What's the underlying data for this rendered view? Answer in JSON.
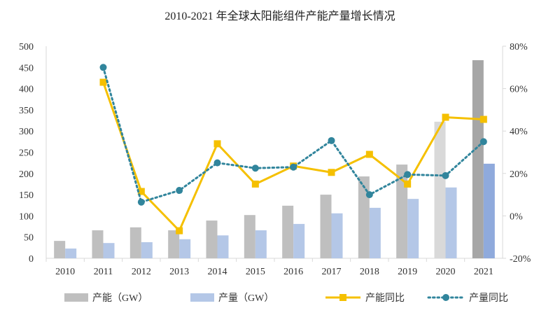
{
  "chart_data": {
    "type": "bar+line",
    "title": "2010-2021 年全球太阳能组件产能产量增长情况",
    "categories": [
      "2010",
      "2011",
      "2012",
      "2013",
      "2014",
      "2015",
      "2016",
      "2017",
      "2018",
      "2019",
      "2020",
      "2021"
    ],
    "left_axis": {
      "ylim": [
        0,
        500
      ],
      "ticks": [
        "0",
        "50",
        "100",
        "150",
        "200",
        "250",
        "300",
        "350",
        "400",
        "450",
        "500"
      ]
    },
    "right_axis": {
      "ylim": [
        -20,
        80
      ],
      "ticks": [
        "-20%",
        "0%",
        "20%",
        "40%",
        "60%",
        "80%"
      ]
    },
    "grid": false,
    "legend_position": "bottom",
    "series": [
      {
        "name": "产能（GW）",
        "type": "bar",
        "axis": "left",
        "color": "#bfbfbf",
        "values": [
          41,
          66,
          73,
          66,
          89,
          102,
          124,
          150,
          193,
          221,
          322,
          467
        ]
      },
      {
        "name": "产量（GW）",
        "type": "bar",
        "axis": "left",
        "color": "#b4c7e7",
        "values": [
          23,
          36,
          38,
          45,
          54,
          66,
          81,
          106,
          119,
          140,
          167,
          223
        ]
      },
      {
        "name": "产能同比",
        "type": "line",
        "axis": "right",
        "color": "#f5c000",
        "marker": "square",
        "values": [
          null,
          63,
          11.5,
          -7,
          34,
          15,
          23.5,
          20.5,
          29,
          15,
          46.5,
          45.5
        ]
      },
      {
        "name": "产量同比",
        "type": "line",
        "axis": "right",
        "color": "#31859c",
        "marker": "circle",
        "dash": "dotted",
        "values": [
          null,
          70,
          6.5,
          12,
          25,
          22.5,
          23,
          35.5,
          10,
          19.5,
          19,
          35
        ]
      }
    ],
    "highlight_colors": {
      "capacity_2020": "#d9d9d9",
      "capacity_2021": "#a6a6a6",
      "production_2021": "#8faadc"
    }
  }
}
